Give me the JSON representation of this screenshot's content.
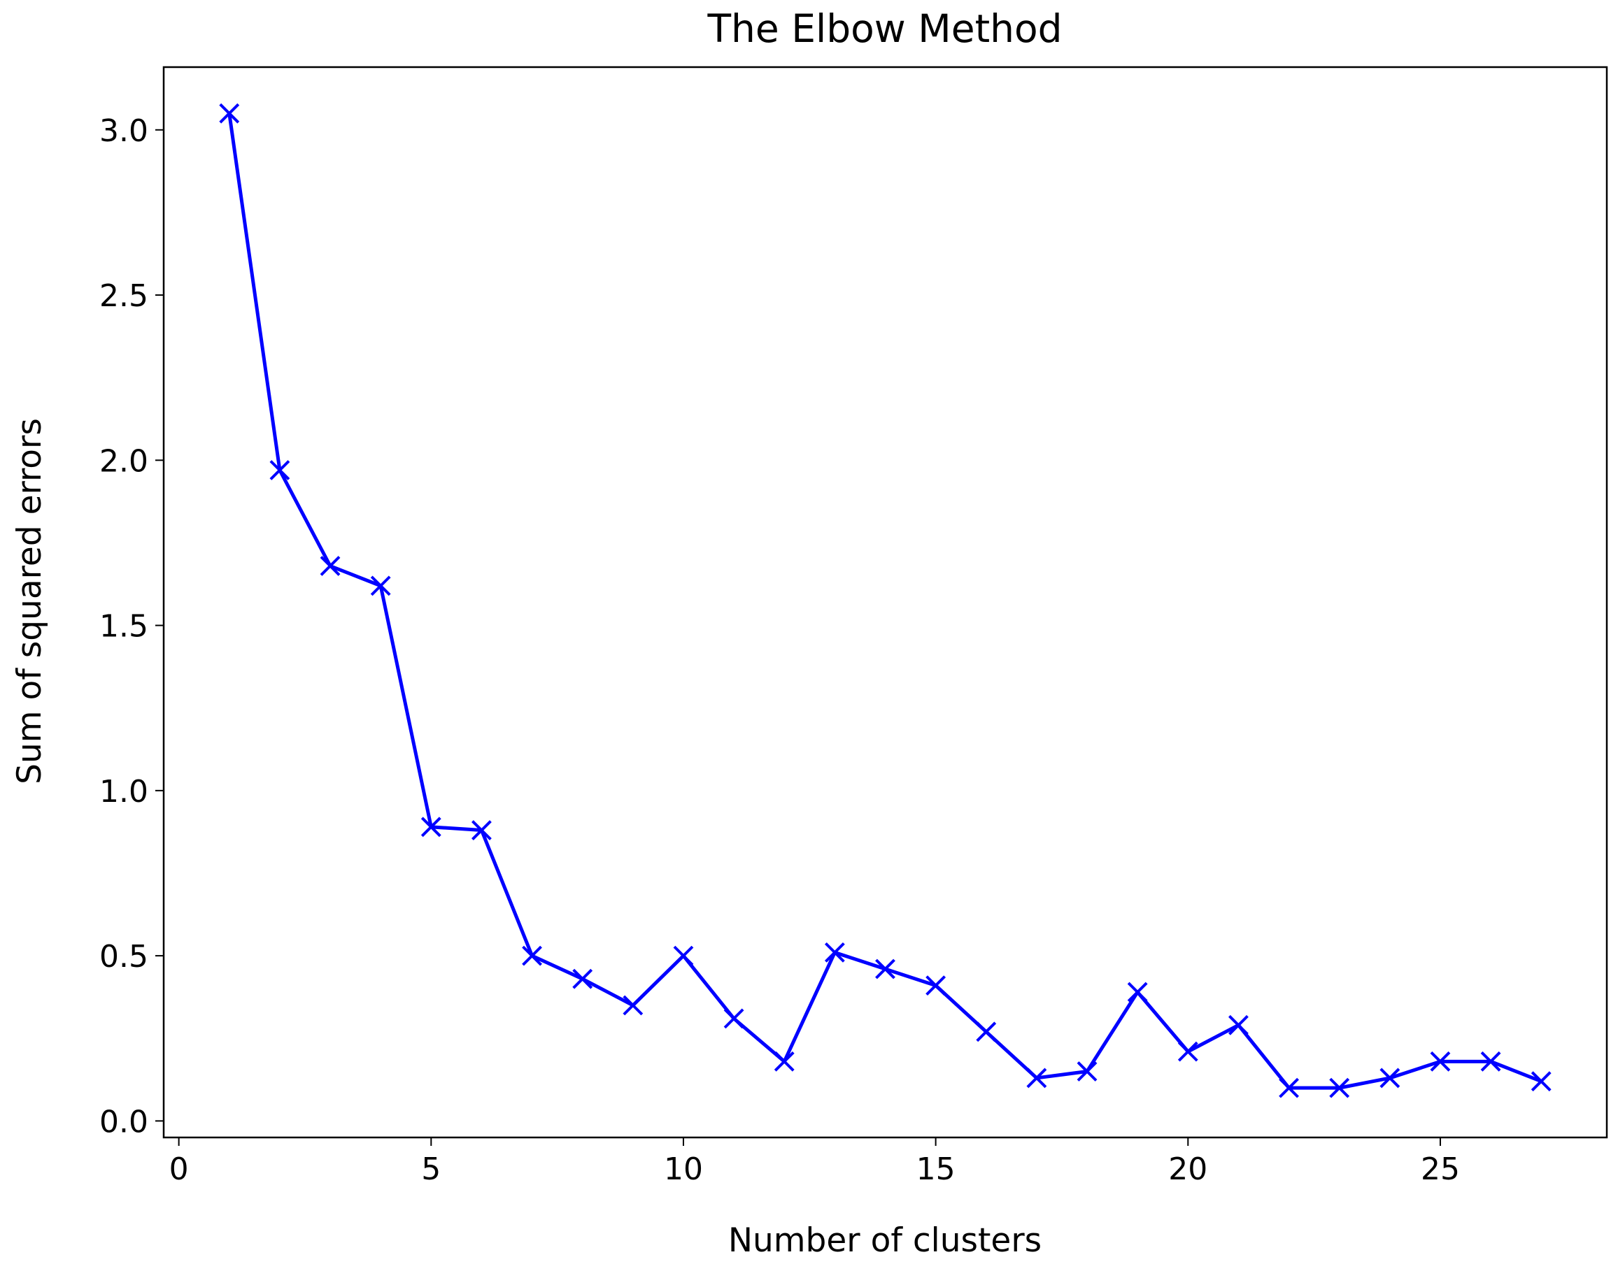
{
  "chart_data": {
    "type": "line",
    "title": "The Elbow Method",
    "x_label": "Number of clusters",
    "y_label": "Sum of squared errors",
    "x": [
      1,
      2,
      3,
      4,
      5,
      6,
      7,
      8,
      9,
      10,
      11,
      12,
      13,
      14,
      15,
      16,
      17,
      18,
      19,
      20,
      21,
      22,
      23,
      24,
      25,
      26,
      27
    ],
    "values": [
      3.05,
      1.97,
      1.68,
      1.62,
      0.89,
      0.88,
      0.5,
      0.43,
      0.35,
      0.5,
      0.31,
      0.18,
      0.51,
      0.46,
      0.41,
      0.27,
      0.13,
      0.15,
      0.39,
      0.21,
      0.29,
      0.1,
      0.1,
      0.13,
      0.18,
      0.18,
      0.12
    ],
    "color": "#0000ff",
    "marker": "x",
    "xlim": [
      -0.3,
      28.3
    ],
    "ylim": [
      -0.05,
      3.19
    ],
    "xticks": [
      0,
      5,
      10,
      15,
      20,
      25
    ],
    "yticks": [
      {
        "value": 0,
        "label": "0.0"
      },
      0.5,
      {
        "value": 1,
        "label": "1.0"
      },
      1.5,
      {
        "value": 2,
        "label": "2.0"
      },
      2.5,
      {
        "value": 3,
        "label": "3.0"
      }
    ],
    "grid": false
  }
}
